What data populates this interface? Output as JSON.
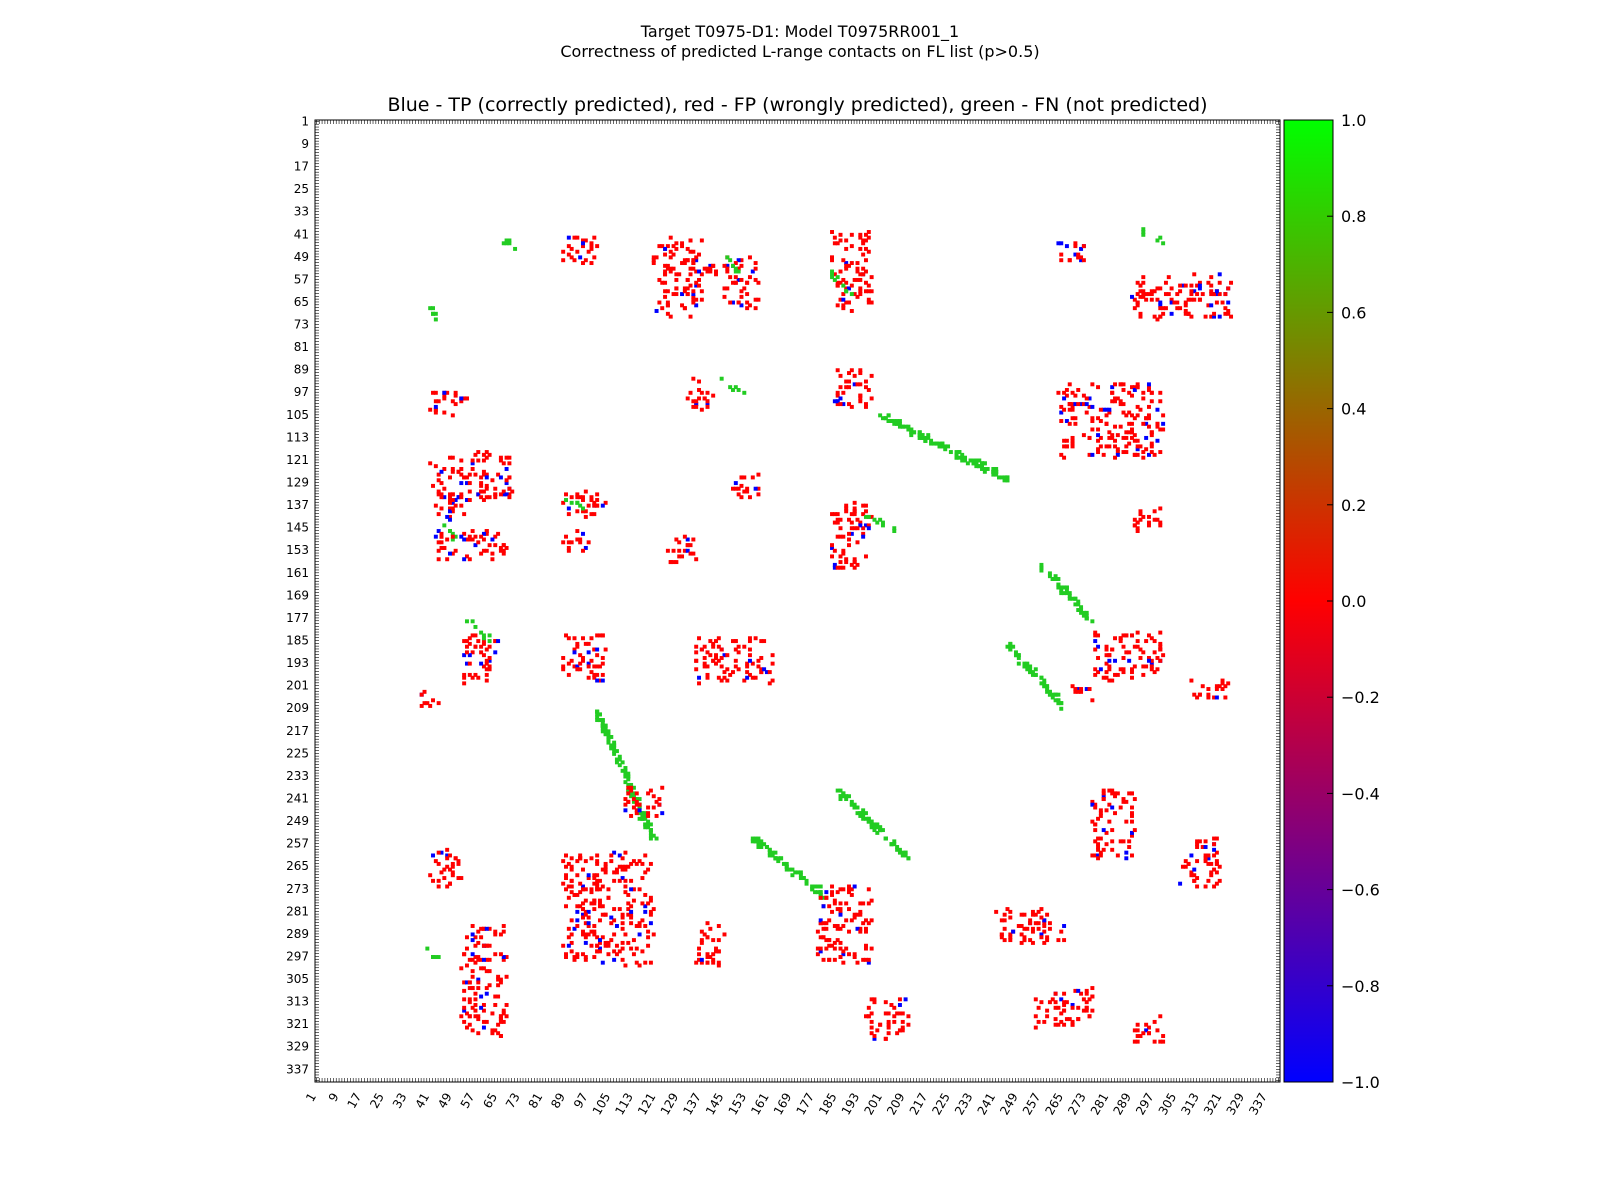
{
  "chart_data": {
    "type": "heatmap",
    "suptitle_line1": "Target T0975-D1: Model T0975RR001_1",
    "suptitle_line2": "Correctness of predicted L-range contacts on FL list (p>0.5)",
    "title": "Blue - TP (correctly predicted), red - FP (wrongly predicted), green - FN (not predicted)",
    "n_residues": 341,
    "tick_labels": [
      "1",
      "9",
      "17",
      "25",
      "33",
      "41",
      "49",
      "57",
      "65",
      "73",
      "81",
      "89",
      "97",
      "105",
      "113",
      "121",
      "129",
      "137",
      "145",
      "153",
      "161",
      "169",
      "177",
      "185",
      "193",
      "201",
      "209",
      "217",
      "225",
      "233",
      "241",
      "249",
      "257",
      "265",
      "273",
      "281",
      "289",
      "297",
      "305",
      "313",
      "321",
      "329",
      "337"
    ],
    "colorbar": {
      "min": -1.0,
      "max": 1.0,
      "ticks": [
        "1.0",
        "0.8",
        "0.6",
        "0.4",
        "0.2",
        "0.0",
        "−0.2",
        "−0.4",
        "−0.6",
        "−0.8",
        "−1.0"
      ]
    },
    "categories": [
      {
        "name": "TP",
        "value": -1.0,
        "color": "#0000ff"
      },
      {
        "name": "FP",
        "value": 0.0,
        "color": "#ff0000"
      },
      {
        "name": "FN",
        "value": 1.0,
        "color": "#22cc22"
      }
    ],
    "clusters": [
      {
        "class": "FP",
        "x": [
          120,
          137
        ],
        "y": [
          42,
          70
        ]
      },
      {
        "class": "FP",
        "x": [
          132,
          142
        ],
        "y": [
          49,
          56
        ]
      },
      {
        "class": "FP",
        "x": [
          145,
          157
        ],
        "y": [
          49,
          68
        ]
      },
      {
        "class": "FN",
        "x": [
          145,
          150
        ],
        "y": [
          49,
          55
        ]
      },
      {
        "class": "FP",
        "x": [
          183,
          197
        ],
        "y": [
          40,
          68
        ]
      },
      {
        "class": "FN",
        "x": [
          182,
          190
        ],
        "y": [
          55,
          62
        ]
      },
      {
        "class": "FP",
        "x": [
          263,
          275
        ],
        "y": [
          44,
          51
        ]
      },
      {
        "class": "FP",
        "x": [
          289,
          325
        ],
        "y": [
          55,
          71
        ]
      },
      {
        "class": "FN",
        "x": [
          293,
          300
        ],
        "y": [
          40,
          44
        ]
      },
      {
        "class": "FP",
        "x": [
          88,
          100
        ],
        "y": [
          42,
          52
        ]
      },
      {
        "class": "FN",
        "x": [
          41,
          44
        ],
        "y": [
          68,
          71
        ]
      },
      {
        "class": "FN",
        "x": [
          67,
          71
        ],
        "y": [
          42,
          46
        ]
      },
      {
        "class": "FP",
        "x": [
          183,
          197
        ],
        "y": [
          89,
          102
        ]
      },
      {
        "class": "FP",
        "x": [
          132,
          141
        ],
        "y": [
          92,
          103
        ]
      },
      {
        "class": "FN",
        "x": [
          145,
          153
        ],
        "y": [
          93,
          98
        ]
      },
      {
        "class": "FP",
        "x": [
          41,
          55
        ],
        "y": [
          96,
          105
        ]
      },
      {
        "class": "FP",
        "x": [
          263,
          300
        ],
        "y": [
          94,
          120
        ]
      },
      {
        "class": "FN",
        "x": [
          200,
          246
        ],
        "y": [
          105,
          128
        ]
      },
      {
        "class": "FP",
        "x": [
          41,
          70
        ],
        "y": [
          118,
          135
        ]
      },
      {
        "class": "FP",
        "x": [
          43,
          55
        ],
        "y": [
          134,
          142
        ]
      },
      {
        "class": "FP",
        "x": [
          147,
          158
        ],
        "y": [
          126,
          134
        ]
      },
      {
        "class": "FP",
        "x": [
          88,
          103
        ],
        "y": [
          132,
          141
        ]
      },
      {
        "class": "FN",
        "x": [
          88,
          95
        ],
        "y": [
          134,
          138
        ]
      },
      {
        "class": "FP",
        "x": [
          183,
          197
        ],
        "y": [
          136,
          160
        ]
      },
      {
        "class": "FN",
        "x": [
          195,
          205
        ],
        "y": [
          140,
          146
        ]
      },
      {
        "class": "FP",
        "x": [
          290,
          300
        ],
        "y": [
          138,
          147
        ]
      },
      {
        "class": "FN",
        "x": [
          43,
          50
        ],
        "y": [
          143,
          148
        ]
      },
      {
        "class": "FP",
        "x": [
          41,
          68
        ],
        "y": [
          146,
          156
        ]
      },
      {
        "class": "FP",
        "x": [
          125,
          135
        ],
        "y": [
          148,
          158
        ]
      },
      {
        "class": "FP",
        "x": [
          88,
          97
        ],
        "y": [
          146,
          153
        ]
      },
      {
        "class": "FN",
        "x": [
          257,
          275
        ],
        "y": [
          158,
          178
        ]
      },
      {
        "class": "FP",
        "x": [
          52,
          65
        ],
        "y": [
          183,
          200
        ]
      },
      {
        "class": "FN",
        "x": [
          55,
          62
        ],
        "y": [
          178,
          185
        ]
      },
      {
        "class": "FP",
        "x": [
          88,
          103
        ],
        "y": [
          183,
          200
        ]
      },
      {
        "class": "FP",
        "x": [
          135,
          162
        ],
        "y": [
          184,
          200
        ]
      },
      {
        "class": "FP",
        "x": [
          275,
          300
        ],
        "y": [
          182,
          199
        ]
      },
      {
        "class": "FN",
        "x": [
          245,
          265
        ],
        "y": [
          186,
          208
        ]
      },
      {
        "class": "FP",
        "x": [
          38,
          44
        ],
        "y": [
          202,
          208
        ]
      },
      {
        "class": "FP",
        "x": [
          268,
          275
        ],
        "y": [
          200,
          206
        ]
      },
      {
        "class": "FP",
        "x": [
          310,
          325
        ],
        "y": [
          199,
          205
        ]
      },
      {
        "class": "FN",
        "x": [
          100,
          120
        ],
        "y": [
          210,
          255
        ]
      },
      {
        "class": "FP",
        "x": [
          110,
          123
        ],
        "y": [
          236,
          248
        ]
      },
      {
        "class": "FN",
        "x": [
          155,
          180
        ],
        "y": [
          255,
          275
        ]
      },
      {
        "class": "FN",
        "x": [
          185,
          210
        ],
        "y": [
          238,
          262
        ]
      },
      {
        "class": "FP",
        "x": [
          41,
          52
        ],
        "y": [
          258,
          272
        ]
      },
      {
        "class": "FP",
        "x": [
          275,
          290
        ],
        "y": [
          238,
          262
        ]
      },
      {
        "class": "FP",
        "x": [
          306,
          320
        ],
        "y": [
          255,
          273
        ]
      },
      {
        "class": "FP",
        "x": [
          88,
          120
        ],
        "y": [
          260,
          300
        ]
      },
      {
        "class": "FP",
        "x": [
          178,
          197
        ],
        "y": [
          272,
          300
        ]
      },
      {
        "class": "FP",
        "x": [
          135,
          145
        ],
        "y": [
          285,
          300
        ]
      },
      {
        "class": "FP",
        "x": [
          240,
          265
        ],
        "y": [
          280,
          292
        ]
      },
      {
        "class": "FP",
        "x": [
          52,
          68
        ],
        "y": [
          286,
          325
        ]
      },
      {
        "class": "FN",
        "x": [
          40,
          44
        ],
        "y": [
          294,
          298
        ]
      },
      {
        "class": "FP",
        "x": [
          255,
          275
        ],
        "y": [
          308,
          322
        ]
      },
      {
        "class": "FP",
        "x": [
          195,
          210
        ],
        "y": [
          312,
          326
        ]
      },
      {
        "class": "FP",
        "x": [
          290,
          300
        ],
        "y": [
          318,
          327
        ]
      }
    ]
  }
}
